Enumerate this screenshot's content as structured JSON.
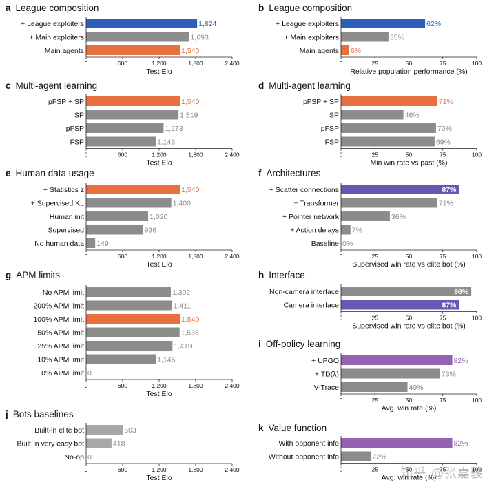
{
  "colors": {
    "grey": "#8c8c8c",
    "light_grey": "#a8a8a8",
    "blue": "#2d5fb8",
    "orange": "#e8703f",
    "indigo": "#6b56b3",
    "purple": "#9462b2",
    "label_grey": "#8a8a8a"
  },
  "watermark": "知乎 @张嘉骏",
  "chart_data": [
    {
      "id": "a",
      "letter": "a",
      "type": "bar",
      "orientation": "horizontal",
      "title": "League composition",
      "xlabel": "Test Elo",
      "xlim": [
        0,
        2400
      ],
      "ticks": [
        0,
        600,
        1200,
        1800,
        2400
      ],
      "tick_labels": [
        "0",
        "600",
        "1,200",
        "1,800",
        "2,400"
      ],
      "categories": [
        "+ League exploiters",
        "+ Main exploiters",
        "Main agents"
      ],
      "values": [
        1824,
        1693,
        1540
      ],
      "value_labels": [
        "1,824",
        "1,693",
        "1,540"
      ],
      "bar_colors": [
        "blue",
        "grey",
        "orange"
      ]
    },
    {
      "id": "b",
      "letter": "b",
      "type": "bar",
      "orientation": "horizontal",
      "title": "League composition",
      "xlabel": "Relative population performance (%)",
      "xlim": [
        0,
        100
      ],
      "ticks": [
        0,
        25,
        50,
        75,
        100
      ],
      "tick_labels": [
        "0",
        "25",
        "50",
        "75",
        "100"
      ],
      "categories": [
        "+ League exploiters",
        "+ Main exploiters",
        "Main agents"
      ],
      "values": [
        62,
        35,
        6
      ],
      "value_labels": [
        "62%",
        "35%",
        "6%"
      ],
      "bar_colors": [
        "blue",
        "grey",
        "orange"
      ]
    },
    {
      "id": "c",
      "letter": "c",
      "type": "bar",
      "orientation": "horizontal",
      "title": "Multi-agent learning",
      "xlabel": "Test Elo",
      "xlim": [
        0,
        2400
      ],
      "ticks": [
        0,
        600,
        1200,
        1800,
        2400
      ],
      "tick_labels": [
        "0",
        "600",
        "1,200",
        "1,800",
        "2,400"
      ],
      "categories": [
        "pFSP + SP",
        "SP",
        "pFSP",
        "FSP"
      ],
      "values": [
        1540,
        1519,
        1273,
        1143
      ],
      "value_labels": [
        "1,540",
        "1,519",
        "1,273",
        "1,143"
      ],
      "bar_colors": [
        "orange",
        "grey",
        "grey",
        "grey"
      ]
    },
    {
      "id": "d",
      "letter": "d",
      "type": "bar",
      "orientation": "horizontal",
      "title": "Multi-agent learning",
      "xlabel": "Min win rate vs past (%)",
      "xlim": [
        0,
        100
      ],
      "ticks": [
        0,
        25,
        50,
        75,
        100
      ],
      "tick_labels": [
        "0",
        "25",
        "50",
        "75",
        "100"
      ],
      "categories": [
        "pFSP + SP",
        "SP",
        "pFSP",
        "FSP"
      ],
      "values": [
        71,
        46,
        70,
        69
      ],
      "value_labels": [
        "71%",
        "46%",
        "70%",
        "69%"
      ],
      "bar_colors": [
        "orange",
        "grey",
        "grey",
        "grey"
      ]
    },
    {
      "id": "e",
      "letter": "e",
      "type": "bar",
      "orientation": "horizontal",
      "title": "Human data usage",
      "xlabel": "Test Elo",
      "xlim": [
        0,
        2400
      ],
      "ticks": [
        0,
        600,
        1200,
        1800,
        2400
      ],
      "tick_labels": [
        "0",
        "600",
        "1,200",
        "1,800",
        "2,400"
      ],
      "categories": [
        "+ Statistics z",
        "+ Supervised KL",
        "Human init",
        "Supervised",
        "No human data"
      ],
      "values": [
        1540,
        1400,
        1020,
        936,
        149
      ],
      "value_labels": [
        "1,540",
        "1,400",
        "1,020",
        "936",
        "149"
      ],
      "bar_colors": [
        "orange",
        "grey",
        "grey",
        "grey",
        "grey"
      ]
    },
    {
      "id": "f",
      "letter": "f",
      "type": "bar",
      "orientation": "horizontal",
      "title": "Architectures",
      "xlabel": "Supervised win rate vs elite bot (%)",
      "xlim": [
        0,
        100
      ],
      "ticks": [
        0,
        25,
        50,
        75,
        100
      ],
      "tick_labels": [
        "0",
        "25",
        "50",
        "75",
        "100"
      ],
      "categories": [
        "+ Scatter connections",
        "+ Transformer",
        "+ Pointer network",
        "+ Action delays",
        "Baseline"
      ],
      "values": [
        87,
        71,
        36,
        7,
        0
      ],
      "value_labels": [
        "87%",
        "71%",
        "36%",
        "7%",
        "0%"
      ],
      "bar_colors": [
        "indigo",
        "grey",
        "grey",
        "grey",
        "grey"
      ],
      "inside_label_first": true
    },
    {
      "id": "g",
      "letter": "g",
      "type": "bar",
      "orientation": "horizontal",
      "title": "APM limits",
      "xlabel": "Test Elo",
      "xlim": [
        0,
        2400
      ],
      "ticks": [
        0,
        600,
        1200,
        1800,
        2400
      ],
      "tick_labels": [
        "0",
        "600",
        "1,200",
        "1,800",
        "2,400"
      ],
      "categories": [
        "No APM limit",
        "200% APM limit",
        "100% APM limit",
        "50% APM limit",
        "25% APM limit",
        "10% APM limit",
        "0% APM limit"
      ],
      "values": [
        1392,
        1411,
        1540,
        1536,
        1419,
        1145,
        0
      ],
      "value_labels": [
        "1,392",
        "1,411",
        "1,540",
        "1,536",
        "1,419",
        "1,145",
        "0"
      ],
      "bar_colors": [
        "grey",
        "grey",
        "orange",
        "grey",
        "grey",
        "grey",
        "grey"
      ]
    },
    {
      "id": "h",
      "letter": "h",
      "type": "bar",
      "orientation": "horizontal",
      "title": "Interface",
      "xlabel": "Supervised win rate vs elite bot (%)",
      "xlim": [
        0,
        100
      ],
      "ticks": [
        0,
        25,
        50,
        75,
        100
      ],
      "tick_labels": [
        "0",
        "25",
        "50",
        "75",
        "100"
      ],
      "categories": [
        "Non-camera interface",
        "Camera interface"
      ],
      "values": [
        96,
        87
      ],
      "value_labels": [
        "96%",
        "87%"
      ],
      "bar_colors": [
        "grey",
        "indigo"
      ],
      "inside_labels": true
    },
    {
      "id": "i",
      "letter": "i",
      "type": "bar",
      "orientation": "horizontal",
      "title": "Off-policy learning",
      "xlabel": "Avg. win rate (%)",
      "xlim": [
        0,
        100
      ],
      "ticks": [
        0,
        25,
        50,
        75,
        100
      ],
      "tick_labels": [
        "0",
        "25",
        "50",
        "75",
        "100"
      ],
      "categories": [
        "+ UPGO",
        "+ TD(λ)",
        "V-Trace"
      ],
      "values": [
        82,
        73,
        49
      ],
      "value_labels": [
        "82%",
        "73%",
        "49%"
      ],
      "bar_colors": [
        "purple",
        "grey",
        "grey"
      ]
    },
    {
      "id": "j",
      "letter": "j",
      "type": "bar",
      "orientation": "horizontal",
      "title": "Bots baselines",
      "xlabel": "Test Elo",
      "xlim": [
        0,
        2400
      ],
      "ticks": [
        0,
        600,
        1200,
        1800,
        2400
      ],
      "tick_labels": [
        "0",
        "600",
        "1,200",
        "1,800",
        "2,400"
      ],
      "categories": [
        "Built-in elite bot",
        "Built-in very easy bot",
        "No-op"
      ],
      "values": [
        603,
        418,
        0
      ],
      "value_labels": [
        "603",
        "418",
        "0"
      ],
      "bar_colors": [
        "light_grey",
        "light_grey",
        "light_grey"
      ]
    },
    {
      "id": "k",
      "letter": "k",
      "type": "bar",
      "orientation": "horizontal",
      "title": "Value function",
      "xlabel": "Avg. win rate (%)",
      "xlim": [
        0,
        100
      ],
      "ticks": [
        0,
        25,
        50,
        75,
        100
      ],
      "tick_labels": [
        "0",
        "25",
        "50",
        "75",
        "100"
      ],
      "categories": [
        "With opponent info",
        "Without opponent info"
      ],
      "values": [
        82,
        22
      ],
      "value_labels": [
        "82%",
        "22%"
      ],
      "bar_colors": [
        "purple",
        "grey"
      ]
    }
  ]
}
